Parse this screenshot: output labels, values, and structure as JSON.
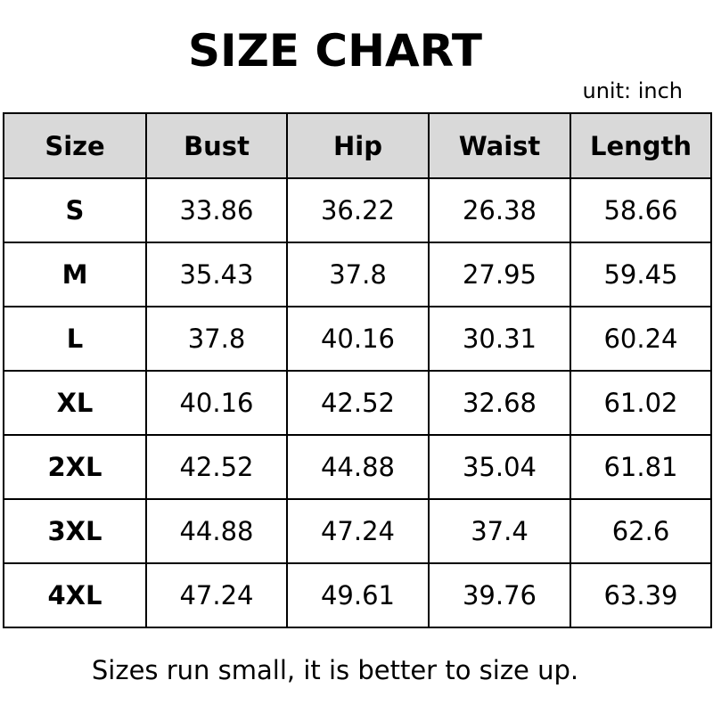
{
  "title": "SIZE CHART",
  "unit": "unit: inch",
  "headers": [
    "Size",
    "Bust",
    "Hip",
    "Waist",
    "Length"
  ],
  "rows": [
    [
      "S",
      "33.86",
      "36.22",
      "26.38",
      "58.66"
    ],
    [
      "M",
      "35.43",
      "37.8",
      "27.95",
      "59.45"
    ],
    [
      "L",
      "37.8",
      "40.16",
      "30.31",
      "60.24"
    ],
    [
      "XL",
      "40.16",
      "42.52",
      "32.68",
      "61.02"
    ],
    [
      "2XL",
      "42.52",
      "44.88",
      "35.04",
      "61.81"
    ],
    [
      "3XL",
      "44.88",
      "47.24",
      "37.4",
      "62.6"
    ],
    [
      "4XL",
      "47.24",
      "49.61",
      "39.76",
      "63.39"
    ]
  ],
  "note": "Sizes run small, it is better to size up.",
  "colors": {
    "header_bg": "#d9d9d9",
    "border": "#000000"
  }
}
